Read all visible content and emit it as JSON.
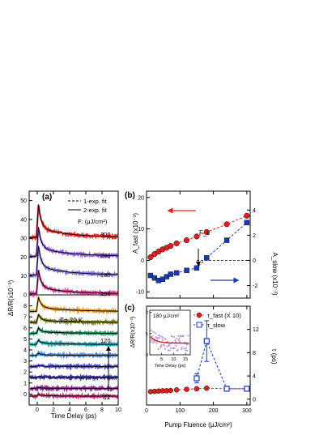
{
  "chart_data": [
    {
      "panel": "(a)",
      "type": "line",
      "xlabel": "Time Delay (ps)",
      "ylabel": "ΔR/R(x10⁻³)",
      "xlim": [
        -1,
        10
      ],
      "ylim_upper": [
        0,
        55
      ],
      "ylim_lower": [
        -1,
        9
      ],
      "xticks": [
        0,
        2,
        4,
        6,
        8,
        10
      ],
      "yticks_upper": [
        0,
        10,
        20,
        30,
        40,
        50
      ],
      "yticks_lower": [
        0,
        1,
        2,
        3,
        4,
        5,
        6,
        7,
        8
      ],
      "legend": [
        "1-exp. fit",
        "2-exp. fit"
      ],
      "fluence_header": "F: (μJ/cm²)",
      "temperature_label": "T= 20 K",
      "range_top": "120",
      "range_bottom": "12",
      "upper_traces": [
        {
          "label": "300",
          "offset": 30.5,
          "peak": 48,
          "color": "#e02020"
        },
        {
          "label": "240",
          "offset": 20.5,
          "peak": 36,
          "color": "#8a4fd6"
        },
        {
          "label": "180",
          "offset": 10.5,
          "peak": 26,
          "color": "#7a6fd0"
        },
        {
          "label": "150",
          "offset": 0.5,
          "peak": 13,
          "color": "#d1308a"
        }
      ],
      "lower_traces": [
        {
          "label": "120",
          "offset": 7.5,
          "peak": 8.8,
          "color": "#d88a1a"
        },
        {
          "offset": 6.5,
          "peak": 7.2,
          "color": "#7a7a18"
        },
        {
          "offset": 5.5,
          "peak": 6.0,
          "color": "#1a8a5a"
        },
        {
          "offset": 4.5,
          "peak": 4.9,
          "color": "#0a9aa8"
        },
        {
          "offset": 3.5,
          "peak": 3.7,
          "color": "#2a7ad8"
        },
        {
          "offset": 2.5,
          "peak": 2.6,
          "color": "#3a3ad0"
        },
        {
          "offset": 1.5,
          "peak": 1.6,
          "color": "#2a2a8a"
        },
        {
          "offset": 0.5,
          "peak": 0.6,
          "color": "#7a1a7a"
        },
        {
          "label": "12",
          "offset": -0.2,
          "peak": 0.0,
          "color": "#c02060"
        }
      ]
    },
    {
      "panel": "(b)",
      "type": "scatter",
      "xlim": [
        0,
        310
      ],
      "y_left_label": "A_fast (x10⁻³)",
      "y_left_lim": [
        -12,
        22
      ],
      "y_left_ticks": [
        -10,
        0,
        10,
        20
      ],
      "y_right_label": "A_slow (x10⁻³)",
      "y_right_lim": [
        -3,
        5.5
      ],
      "y_right_ticks": [
        -2,
        0,
        2,
        4
      ],
      "annotation": "F_c",
      "fc_value": 150,
      "series": [
        {
          "name": "A_fast",
          "axis": "left",
          "color": "#e02020",
          "x": [
            12,
            24,
            36,
            48,
            60,
            72,
            90,
            120,
            150,
            180,
            240,
            300
          ],
          "y": [
            1.0,
            2.0,
            2.8,
            3.5,
            4.0,
            4.6,
            5.4,
            6.4,
            7.6,
            9.0,
            11.5,
            14.2
          ]
        },
        {
          "name": "A_slow",
          "axis": "right",
          "color": "#1a3ab0",
          "x": [
            12,
            24,
            36,
            48,
            60,
            72,
            90,
            120,
            150,
            180,
            240,
            300
          ],
          "y": [
            -1.2,
            -1.4,
            -1.6,
            -1.5,
            -1.3,
            -1.1,
            -1.0,
            -0.8,
            -0.6,
            0.2,
            1.6,
            3.0
          ]
        }
      ]
    },
    {
      "panel": "(c)",
      "type": "scatter",
      "xlabel": "Pump Fluence (μJ/cm²)",
      "xlim": [
        0,
        310
      ],
      "xticks": [
        0,
        100,
        200,
        300
      ],
      "ylabel": "τ (ps)",
      "ylim": [
        -1,
        16
      ],
      "yticks": [
        0,
        4,
        8,
        12
      ],
      "legend": [
        "τ_fast (X 10)",
        "τ_slow"
      ],
      "series": [
        {
          "name": "τ_fast (X 10)",
          "color": "#e02020",
          "x": [
            12,
            24,
            36,
            48,
            60,
            72,
            90,
            120,
            150,
            180,
            240,
            300
          ],
          "y": [
            1.3,
            1.35,
            1.4,
            1.45,
            1.45,
            1.5,
            1.6,
            1.7,
            1.8,
            1.9,
            1.8,
            1.8
          ]
        },
        {
          "name": "τ_slow",
          "color": "#1a3ab0",
          "x": [
            150,
            180,
            240,
            300
          ],
          "y": [
            3.6,
            10.0,
            1.8,
            1.8
          ],
          "err": [
            0.8,
            3.5,
            0.3,
            0.3
          ]
        }
      ],
      "inset": {
        "label": "180 μJ/cm²",
        "xlabel": "Time Delay (ps)",
        "ylabel": "ΔR/R(x10⁻³)",
        "xticks": [
          5,
          10,
          15
        ],
        "yticks": [
          0,
          1,
          2
        ],
        "xlim": [
          0,
          17
        ],
        "ylim": [
          0,
          2.1
        ]
      }
    }
  ]
}
